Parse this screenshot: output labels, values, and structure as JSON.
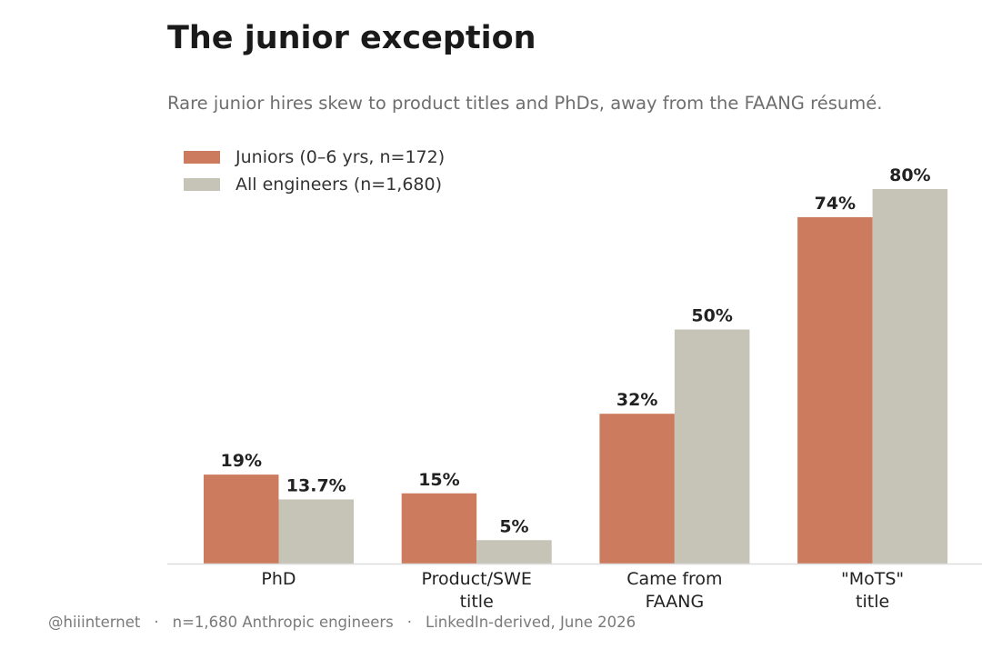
{
  "chart_data": {
    "type": "bar",
    "title": "The junior exception",
    "subtitle": "Rare junior hires skew to product titles and PhDs, away from the FAANG résumé.",
    "categories": [
      "PhD",
      "Product/SWE\ntitle",
      "Came from\nFAANG",
      "\"MoTS\"\ntitle"
    ],
    "series": [
      {
        "name": "Juniors (0–6 yrs, n=172)",
        "values": [
          19,
          15,
          32,
          74
        ],
        "labels": [
          "19%",
          "15%",
          "32%",
          "74%"
        ],
        "color": "#cd7b5f"
      },
      {
        "name": "All engineers (n=1,680)",
        "values": [
          13.7,
          5,
          50,
          80
        ],
        "labels": [
          "13.7%",
          "5%",
          "50%",
          "80%"
        ],
        "color": "#c6c3b7"
      }
    ],
    "ylim": [
      0,
      80
    ],
    "grid": false,
    "legend_position": "top-left"
  },
  "footer": {
    "items": [
      "@hiiinternet",
      "n=1,680 Anthropic engineers",
      "LinkedIn-derived, June 2026"
    ],
    "separator": "·"
  }
}
